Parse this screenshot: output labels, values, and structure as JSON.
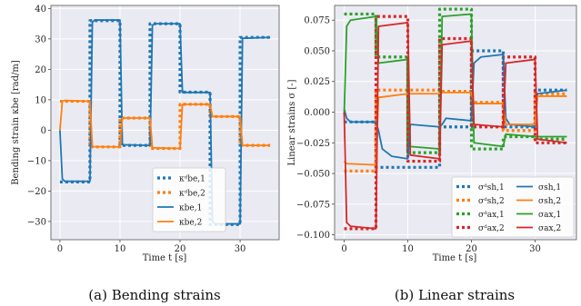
{
  "chart_data": [
    {
      "type": "line",
      "caption": "(a) Bending strains",
      "xlabel": "Time t [s]",
      "ylabel": "Bending strain κbe [rad/m]",
      "xlim": [
        -1.5,
        36.5
      ],
      "ylim": [
        -36,
        41
      ],
      "xticks": [
        0,
        10,
        20,
        30
      ],
      "yticks": [
        -30,
        -20,
        -10,
        0,
        10,
        20,
        30,
        40
      ],
      "grid": true,
      "legend_position": "lower-right",
      "series": [
        {
          "name": "κᵈbe,1",
          "style": "dotted",
          "color": "#1f77b4",
          "points": [
            [
              0,
              -17
            ],
            [
              5,
              -17
            ],
            [
              5,
              36
            ],
            [
              10,
              36
            ],
            [
              10,
              -5
            ],
            [
              15,
              -5
            ],
            [
              15,
              35
            ],
            [
              20,
              35
            ],
            [
              20,
              12.5
            ],
            [
              25,
              12.5
            ],
            [
              25,
              -31
            ],
            [
              30,
              -31
            ],
            [
              30,
              30.5
            ],
            [
              35,
              30.5
            ]
          ]
        },
        {
          "name": "κᵈbe,2",
          "style": "dotted",
          "color": "#ff7f0e",
          "points": [
            [
              0,
              9.5
            ],
            [
              5,
              9.5
            ],
            [
              5,
              -5.5
            ],
            [
              10,
              -5.5
            ],
            [
              10,
              4
            ],
            [
              15,
              4
            ],
            [
              15,
              -6
            ],
            [
              20,
              -6
            ],
            [
              20,
              8.5
            ],
            [
              25,
              8.5
            ],
            [
              25,
              4.5
            ],
            [
              30,
              4.5
            ],
            [
              30,
              -5
            ],
            [
              35,
              -5
            ]
          ]
        },
        {
          "name": "κbe,1",
          "style": "solid",
          "color": "#1f77b4",
          "points": [
            [
              0,
              0
            ],
            [
              0.4,
              -16
            ],
            [
              0.8,
              -16.8
            ],
            [
              5,
              -16.8
            ],
            [
              5.4,
              35.5
            ],
            [
              5.8,
              36.2
            ],
            [
              10,
              36.2
            ],
            [
              10.4,
              -4.8
            ],
            [
              15,
              -5
            ],
            [
              15.4,
              34.5
            ],
            [
              15.8,
              35
            ],
            [
              20,
              35
            ],
            [
              20.4,
              12.4
            ],
            [
              25,
              12.4
            ],
            [
              25.4,
              -30
            ],
            [
              25.8,
              -30.8
            ],
            [
              30,
              -30.8
            ],
            [
              30.4,
              30.2
            ],
            [
              35,
              30.5
            ]
          ]
        },
        {
          "name": "κbe,2",
          "style": "solid",
          "color": "#ff7f0e",
          "points": [
            [
              0,
              0
            ],
            [
              0.4,
              9.5
            ],
            [
              0.8,
              9.8
            ],
            [
              5,
              9.5
            ],
            [
              5.4,
              -5.4
            ],
            [
              10,
              -5.5
            ],
            [
              10.4,
              4
            ],
            [
              15,
              4
            ],
            [
              15.4,
              -5.8
            ],
            [
              20,
              -6
            ],
            [
              20.4,
              8.5
            ],
            [
              25,
              8.5
            ],
            [
              25.4,
              4.5
            ],
            [
              30,
              4.5
            ],
            [
              30.4,
              -5
            ],
            [
              35,
              -5
            ]
          ]
        }
      ]
    },
    {
      "type": "line",
      "caption": "(b) Linear strains",
      "xlabel": "Time t [s]",
      "ylabel": "Linear strains σ [-]",
      "xlim": [
        -1.5,
        36.5
      ],
      "ylim": [
        -0.104,
        0.087
      ],
      "xticks": [
        0,
        10,
        20,
        30
      ],
      "yticks": [
        -0.1,
        -0.075,
        -0.05,
        -0.025,
        0.0,
        0.025,
        0.05,
        0.075
      ],
      "ytick_labels": [
        "−0.100",
        "−0.075",
        "−0.050",
        "−0.025",
        "0.000",
        "0.025",
        "0.050",
        "0.075"
      ],
      "grid": true,
      "legend_position": "lower-right",
      "series": [
        {
          "name": "σᵈsh,1",
          "style": "dotted",
          "color": "#1f77b4",
          "points": [
            [
              0,
              -0.008
            ],
            [
              5,
              -0.008
            ],
            [
              5,
              -0.045
            ],
            [
              10,
              -0.045
            ],
            [
              10,
              -0.045
            ],
            [
              15,
              -0.045
            ],
            [
              15,
              -0.012
            ],
            [
              20,
              -0.012
            ],
            [
              20,
              0.05
            ],
            [
              25,
              0.05
            ],
            [
              25,
              -0.012
            ],
            [
              30,
              -0.012
            ],
            [
              30,
              0.018
            ],
            [
              35,
              0.018
            ]
          ]
        },
        {
          "name": "σᵈsh,2",
          "style": "dotted",
          "color": "#ff7f0e",
          "points": [
            [
              0,
              -0.048
            ],
            [
              5,
              -0.048
            ],
            [
              5,
              0.018
            ],
            [
              10,
              0.018
            ],
            [
              10,
              0.018
            ],
            [
              15,
              0.018
            ],
            [
              15,
              0.017
            ],
            [
              20,
              0.017
            ],
            [
              20,
              0.008
            ],
            [
              25,
              0.008
            ],
            [
              25,
              -0.015
            ],
            [
              30,
              -0.015
            ],
            [
              30,
              0.015
            ],
            [
              35,
              0.015
            ]
          ]
        },
        {
          "name": "σᵈax,1",
          "style": "dotted",
          "color": "#2ca02c",
          "points": [
            [
              0,
              0.08
            ],
            [
              5,
              0.08
            ],
            [
              5,
              0.045
            ],
            [
              10,
              0.045
            ],
            [
              10,
              -0.033
            ],
            [
              15,
              -0.033
            ],
            [
              15,
              0.084
            ],
            [
              20,
              0.084
            ],
            [
              20,
              -0.03
            ],
            [
              25,
              -0.03
            ],
            [
              25,
              -0.02
            ],
            [
              30,
              -0.02
            ],
            [
              30,
              -0.022
            ],
            [
              35,
              -0.022
            ]
          ]
        },
        {
          "name": "σᵈax,2",
          "style": "dotted",
          "color": "#d62728",
          "points": [
            [
              0,
              -0.095
            ],
            [
              5,
              -0.095
            ],
            [
              5,
              0.078
            ],
            [
              10,
              0.078
            ],
            [
              10,
              -0.04
            ],
            [
              15,
              -0.04
            ],
            [
              15,
              0.06
            ],
            [
              20,
              0.06
            ],
            [
              20,
              -0.012
            ],
            [
              25,
              -0.012
            ],
            [
              25,
              0.045
            ],
            [
              30,
              0.045
            ],
            [
              30,
              -0.025
            ],
            [
              35,
              -0.025
            ]
          ]
        },
        {
          "name": "σsh,1",
          "style": "solid",
          "color": "#1f77b4",
          "points": [
            [
              0,
              0.003
            ],
            [
              0.4,
              -0.005
            ],
            [
              1,
              -0.008
            ],
            [
              5,
              -0.008
            ],
            [
              5.4,
              -0.015
            ],
            [
              6,
              -0.03
            ],
            [
              7.5,
              -0.036
            ],
            [
              10,
              -0.038
            ],
            [
              10.4,
              -0.01
            ],
            [
              15,
              -0.012
            ],
            [
              15.4,
              -0.01
            ],
            [
              16,
              -0.005
            ],
            [
              20,
              -0.007
            ],
            [
              20.4,
              0.04
            ],
            [
              21.5,
              0.045
            ],
            [
              25,
              0.047
            ],
            [
              25.4,
              -0.005
            ],
            [
              26,
              -0.01
            ],
            [
              30,
              -0.012
            ],
            [
              30.4,
              0.015
            ],
            [
              35,
              0.018
            ]
          ]
        },
        {
          "name": "σsh,2",
          "style": "solid",
          "color": "#ff7f0e",
          "points": [
            [
              0,
              -0.04
            ],
            [
              0.4,
              -0.042
            ],
            [
              5,
              -0.043
            ],
            [
              5.4,
              0.012
            ],
            [
              10,
              0.015
            ],
            [
              10.4,
              0.015
            ],
            [
              15,
              0.015
            ],
            [
              15.4,
              0.016
            ],
            [
              20,
              0.016
            ],
            [
              20.4,
              0.007
            ],
            [
              25,
              0.007
            ],
            [
              25.4,
              -0.01
            ],
            [
              30,
              -0.01
            ],
            [
              30.4,
              0.013
            ],
            [
              35,
              0.013
            ]
          ]
        },
        {
          "name": "σax,1",
          "style": "solid",
          "color": "#2ca02c",
          "points": [
            [
              0,
              -0.002
            ],
            [
              0.4,
              0.07
            ],
            [
              1,
              0.075
            ],
            [
              5,
              0.078
            ],
            [
              5.4,
              0.04
            ],
            [
              10,
              0.043
            ],
            [
              10.4,
              -0.028
            ],
            [
              15,
              -0.03
            ],
            [
              15.4,
              0.078
            ],
            [
              20,
              0.08
            ],
            [
              20.4,
              -0.025
            ],
            [
              25,
              -0.028
            ],
            [
              25.4,
              -0.018
            ],
            [
              30,
              -0.02
            ],
            [
              30.4,
              -0.02
            ],
            [
              35,
              -0.02
            ]
          ]
        },
        {
          "name": "σax,2",
          "style": "solid",
          "color": "#d62728",
          "points": [
            [
              0,
              0.0
            ],
            [
              0.4,
              -0.09
            ],
            [
              1,
              -0.093
            ],
            [
              5,
              -0.095
            ],
            [
              5.4,
              0.07
            ],
            [
              10,
              0.073
            ],
            [
              10.4,
              -0.035
            ],
            [
              15,
              -0.038
            ],
            [
              15.4,
              0.055
            ],
            [
              20,
              0.058
            ],
            [
              20.4,
              -0.01
            ],
            [
              25,
              -0.012
            ],
            [
              25.4,
              0.04
            ],
            [
              30,
              0.043
            ],
            [
              30.4,
              -0.022
            ],
            [
              35,
              -0.025
            ]
          ]
        }
      ]
    }
  ]
}
